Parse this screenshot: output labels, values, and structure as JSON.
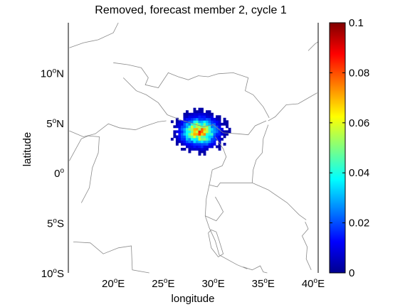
{
  "title": "Removed, forecast member 2, cycle 1",
  "map": {
    "xlabel": "longitude",
    "ylabel": "latitude",
    "lon_range": [
      15.5,
      40.5
    ],
    "lat_range": [
      -10,
      15
    ],
    "lon_ticks": [
      {
        "value": 20,
        "deg": "20",
        "suffix": "E"
      },
      {
        "value": 25,
        "deg": "25",
        "suffix": "E"
      },
      {
        "value": 30,
        "deg": "30",
        "suffix": "E"
      },
      {
        "value": 35,
        "deg": "35",
        "suffix": "E"
      },
      {
        "value": 40,
        "deg": "40",
        "suffix": "E"
      }
    ],
    "lat_ticks": [
      {
        "value": 10,
        "deg": "10",
        "suffix": "N"
      },
      {
        "value": 5,
        "deg": "5",
        "suffix": "N"
      },
      {
        "value": 0,
        "deg": "0",
        "suffix": ""
      },
      {
        "value": -5,
        "deg": "5",
        "suffix": "S"
      },
      {
        "value": -10,
        "deg": "10",
        "suffix": "S"
      }
    ],
    "border_color": "#8a8a8a"
  },
  "chart_data": {
    "type": "heatmap",
    "title": "Removed, forecast member 2, cycle 1",
    "xlabel": "longitude",
    "ylabel": "latitude",
    "xlim": [
      15.5,
      40.5
    ],
    "ylim": [
      -10,
      15
    ],
    "colormap": "jet",
    "clim": [
      0,
      0.1
    ],
    "colorbar_ticks": [
      "0",
      "0.02",
      "0.04",
      "0.06",
      "0.08",
      "0.1"
    ],
    "blob": {
      "center_lon": 28.5,
      "center_lat": 4.0,
      "peak_value": 0.07,
      "extent_lon": [
        24.5,
        32.5
      ],
      "extent_lat": [
        0.5,
        7.5
      ]
    }
  }
}
